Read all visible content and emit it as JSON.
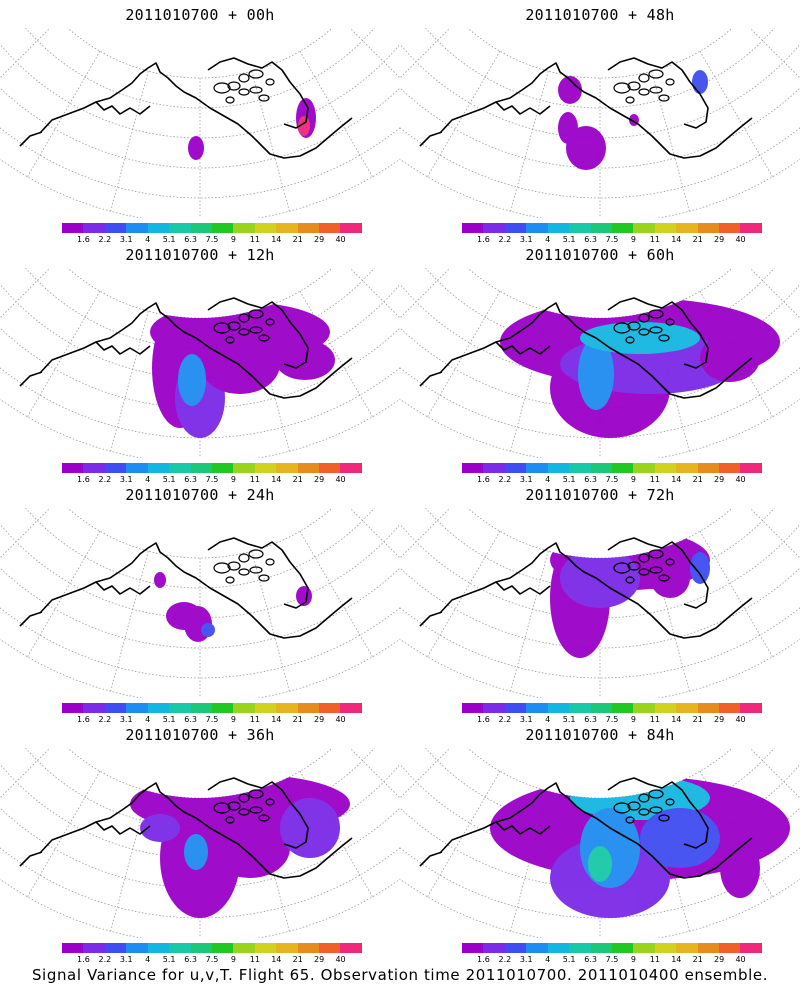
{
  "panels": [
    {
      "title": "2011010700 + 00h",
      "level": 0
    },
    {
      "title": "2011010700 + 48h",
      "level": 4
    },
    {
      "title": "2011010700 + 12h",
      "level": 1
    },
    {
      "title": "2011010700 + 60h",
      "level": 5
    },
    {
      "title": "2011010700 + 24h",
      "level": 2
    },
    {
      "title": "2011010700 + 72h",
      "level": 6
    },
    {
      "title": "2011010700 + 36h",
      "level": 3
    },
    {
      "title": "2011010700 + 84h",
      "level": 7
    }
  ],
  "colorbar": {
    "labels": [
      "1.6",
      "2.2",
      "3.1",
      "4",
      "5.1",
      "6.3",
      "7.5",
      "9",
      "11",
      "14",
      "21",
      "29",
      "40"
    ],
    "colors": [
      "#9a00c8",
      "#7b2ae6",
      "#3f4cf0",
      "#1f8cf0",
      "#14b6e0",
      "#18c8a8",
      "#1cc878",
      "#22c822",
      "#9ad21e",
      "#d2d21e",
      "#e6b41e",
      "#e68c1e",
      "#f0602a",
      "#f0287a"
    ]
  },
  "footer": "Signal Variance for u,v,T. Flight 65. Observation time 2011010700. 2011010400 ensemble."
}
